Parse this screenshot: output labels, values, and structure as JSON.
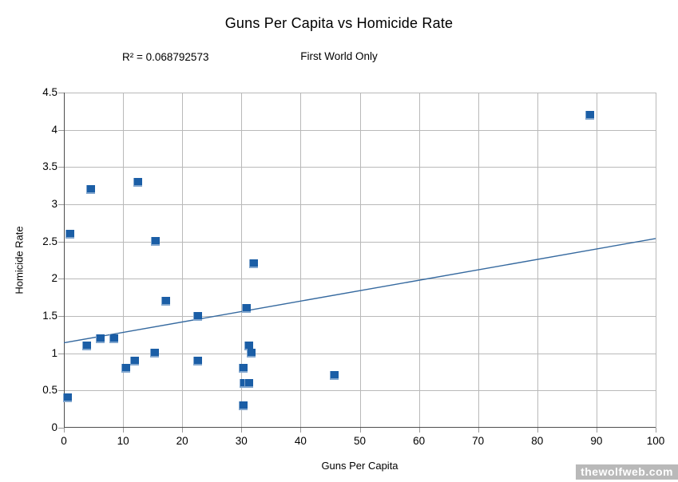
{
  "header": {
    "title": "Guns Per Capita vs Homicide Rate",
    "r_squared_label": "R² = 0.068792573",
    "subtitle": "First World Only"
  },
  "watermark": "thewolfweb.com",
  "colors": {
    "marker": "#1b5ea6",
    "trend_line": "#35699f",
    "grid": "#b9b9b9",
    "axis": "#4d4d4d",
    "watermark_bg": "#b9b9b9",
    "watermark_text": "#ffffff"
  },
  "chart_data": {
    "type": "scatter",
    "title": "Guns Per Capita vs Homicide Rate",
    "subtitle": "First World Only",
    "r_squared": 0.068792573,
    "xlabel": "Guns Per Capita",
    "ylabel": "Homicide Rate",
    "xlim": [
      0,
      100
    ],
    "ylim": [
      0,
      4.5
    ],
    "x_ticks": [
      0,
      10,
      20,
      30,
      40,
      50,
      60,
      70,
      80,
      90,
      100
    ],
    "y_ticks": [
      0,
      0.5,
      1,
      1.5,
      2,
      2.5,
      3,
      3.5,
      4,
      4.5
    ],
    "grid": true,
    "legend": false,
    "marker_shape": "square",
    "points": [
      [
        0.6,
        0.4
      ],
      [
        1.0,
        2.6
      ],
      [
        3.9,
        1.1
      ],
      [
        4.5,
        3.2
      ],
      [
        6.2,
        1.2
      ],
      [
        8.5,
        1.2
      ],
      [
        10.4,
        0.8
      ],
      [
        12.0,
        0.9
      ],
      [
        12.5,
        3.3
      ],
      [
        15.3,
        1.0
      ],
      [
        15.5,
        2.5
      ],
      [
        17.2,
        1.7
      ],
      [
        22.6,
        0.9
      ],
      [
        22.6,
        1.5
      ],
      [
        30.3,
        0.3
      ],
      [
        30.3,
        0.8
      ],
      [
        30.4,
        0.6
      ],
      [
        30.8,
        1.6
      ],
      [
        31.2,
        1.1
      ],
      [
        31.3,
        0.6
      ],
      [
        31.6,
        1.0
      ],
      [
        32.0,
        2.2
      ],
      [
        45.7,
        0.7
      ],
      [
        88.8,
        4.2
      ]
    ],
    "trend_line": {
      "x": [
        0,
        100
      ],
      "y": [
        1.14,
        2.54
      ]
    }
  }
}
